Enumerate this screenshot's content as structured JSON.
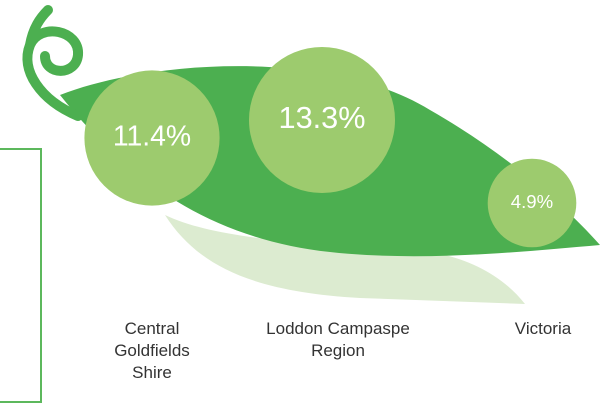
{
  "chart_data": {
    "type": "bubble",
    "categories": [
      "Central Goldfields Shire",
      "Loddon Campaspe Region",
      "Victoria"
    ],
    "values": [
      11.4,
      13.3,
      4.9
    ],
    "value_labels": [
      "11.4%",
      "13.3%",
      "4.9%"
    ],
    "color": "#9dcb6e"
  }
}
